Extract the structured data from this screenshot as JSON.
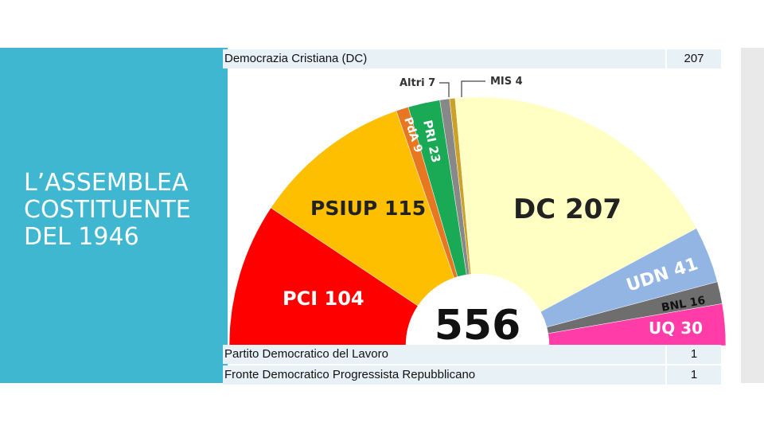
{
  "slide": {
    "title": "L’ASSEMBLEA COSTITUENTE DEL 1946"
  },
  "table_top": {
    "party": "Democrazia Cristiana (DC)",
    "seats": "207"
  },
  "table_bottom": [
    {
      "party": "Partito Democratico del Lavoro",
      "seats": "1"
    },
    {
      "party": "Fronte Democratico Progressista Repubblicano",
      "seats": "1"
    }
  ],
  "chart_data": {
    "type": "pie",
    "variant": "semicircle-parliament",
    "center_label": "556",
    "total": 556,
    "slices": [
      {
        "label": "PCI 104",
        "name": "PCI",
        "value": 104,
        "color": "#ff0000"
      },
      {
        "label": "PSIUP 115",
        "name": "PSIUP",
        "value": 115,
        "color": "#fdbf00"
      },
      {
        "label": "PdA 9",
        "name": "PdA",
        "value": 9,
        "color": "#e87722"
      },
      {
        "label": "PRI 23",
        "name": "PRI",
        "value": 23,
        "color": "#1aaa55"
      },
      {
        "label": "Altri 7",
        "name": "Altri",
        "value": 7,
        "color": "#888888"
      },
      {
        "label": "MIS 4",
        "name": "MIS",
        "value": 4,
        "color": "#c9a227"
      },
      {
        "label": "DC 207",
        "name": "DC",
        "value": 207,
        "color": "#ffffc4"
      },
      {
        "label": "UDN 41",
        "name": "UDN",
        "value": 41,
        "color": "#92b5e3"
      },
      {
        "label": "BNL 16",
        "name": "BNL",
        "value": 16,
        "color": "#6e6e6e"
      },
      {
        "label": "UQ 30",
        "name": "UQ",
        "value": 30,
        "color": "#ff3ca8"
      }
    ]
  }
}
